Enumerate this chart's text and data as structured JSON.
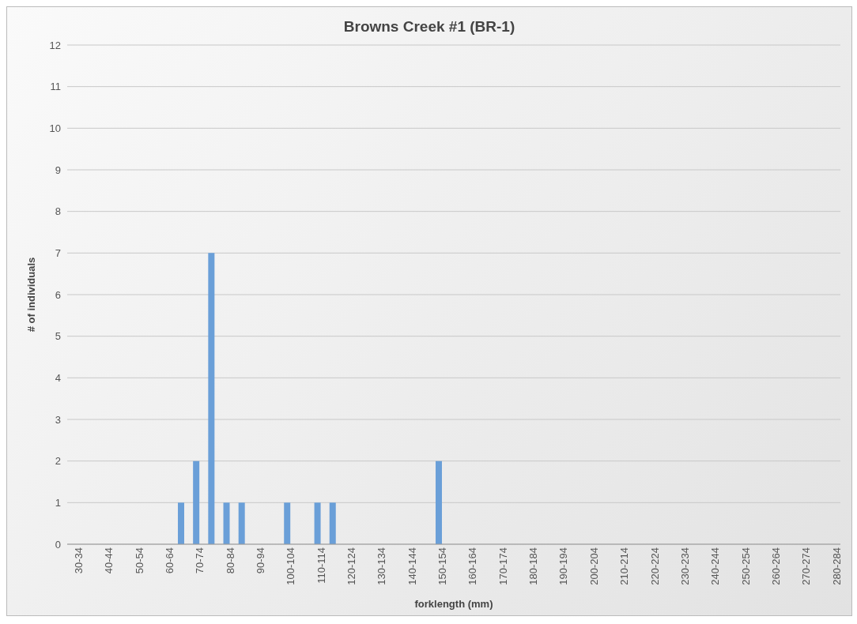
{
  "chart_data": {
    "type": "bar",
    "title": "Browns Creek #1 (BR-1)",
    "xlabel": "forklength (mm)",
    "ylabel": "# of individuals",
    "categories": [
      "30-34",
      null,
      "40-44",
      null,
      "50-54",
      null,
      "60-64",
      null,
      "70-74",
      null,
      "80-84",
      null,
      "90-94",
      null,
      "100-104",
      null,
      "110-114",
      null,
      "120-124",
      null,
      "130-134",
      null,
      "140-144",
      null,
      "150-154",
      null,
      "160-164",
      null,
      "170-174",
      null,
      "180-184",
      null,
      "190-194",
      null,
      "200-204",
      null,
      "210-214",
      null,
      "220-224",
      null,
      "230-234",
      null,
      "240-244",
      null,
      "250-254",
      null,
      "260-264",
      null,
      "270-274",
      null,
      "280-284"
    ],
    "values": [
      0,
      0,
      0,
      0,
      0,
      0,
      0,
      1,
      2,
      7,
      1,
      1,
      0,
      0,
      1,
      0,
      1,
      1,
      0,
      0,
      0,
      0,
      0,
      0,
      2,
      0,
      0,
      0,
      0,
      0,
      0,
      0,
      0,
      0,
      0,
      0,
      0,
      0,
      0,
      0,
      0,
      0,
      0,
      0,
      0,
      0,
      0,
      0,
      0,
      0,
      0
    ],
    "color": "#6a9fd8",
    "ylim": [
      0,
      12
    ],
    "yticks": [
      0,
      1,
      2,
      3,
      4,
      5,
      6,
      7,
      8,
      9,
      10,
      11,
      12
    ],
    "grid": "y"
  }
}
